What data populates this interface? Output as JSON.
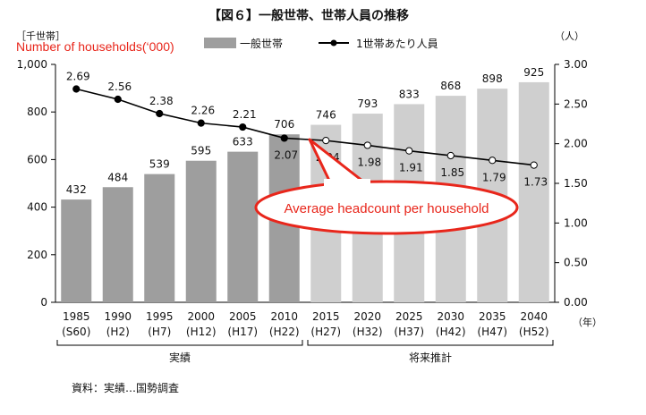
{
  "chart_data": {
    "type": "bar+line",
    "title": "【図６】一般世帯、世帯人員の推移",
    "left_axis": {
      "unit_label": "［千世帯］",
      "ylim": [
        0,
        1000
      ],
      "ticks": [
        "0",
        "200",
        "400",
        "600",
        "800",
        "1,000"
      ]
    },
    "right_axis": {
      "unit_label": "（人）",
      "ylim": [
        0,
        3
      ],
      "ticks": [
        "0.00",
        "0.50",
        "1.00",
        "1.50",
        "2.00",
        "2.50",
        "3.00"
      ]
    },
    "x_unit_label": "（年）",
    "categories": [
      "1985",
      "1990",
      "1995",
      "2000",
      "2005",
      "2010",
      "2015",
      "2020",
      "2025",
      "2030",
      "2035",
      "2040"
    ],
    "era_labels": [
      "(S60)",
      "(H2)",
      "(H7)",
      "(H12)",
      "(H17)",
      "(H22)",
      "(H27)",
      "(H32)",
      "(H37)",
      "(H42)",
      "(H47)",
      "(H52)"
    ],
    "actual_count": 6,
    "series": [
      {
        "name": "一般世帯",
        "type": "bar",
        "values": [
          432,
          484,
          539,
          595,
          633,
          706,
          746,
          793,
          833,
          868,
          898,
          925
        ],
        "value_labels": [
          "432",
          "484",
          "539",
          "595",
          "633",
          "706",
          "746",
          "793",
          "833",
          "868",
          "898",
          "925"
        ]
      },
      {
        "name": "1世帯あたり人員",
        "type": "line",
        "values": [
          2.69,
          2.56,
          2.38,
          2.26,
          2.21,
          2.07,
          2.04,
          1.98,
          1.91,
          1.85,
          1.79,
          1.73
        ],
        "value_labels": [
          "2.69",
          "2.56",
          "2.38",
          "2.26",
          "2.21",
          "2.07",
          "2.04",
          "1.98",
          "1.91",
          "1.85",
          "1.79",
          "1.73"
        ]
      }
    ],
    "groups": [
      "実績",
      "将来推計"
    ],
    "annotations": {
      "households_label": "Number of households(‘000)",
      "callout": "Average headcount per household"
    },
    "source": "資料：実績…国勢調査",
    "colors": {
      "bar_actual": "#9e9e9e",
      "bar_forecast": "#cfcfcf",
      "line": "#000000",
      "annotation": "#e8261b"
    }
  }
}
